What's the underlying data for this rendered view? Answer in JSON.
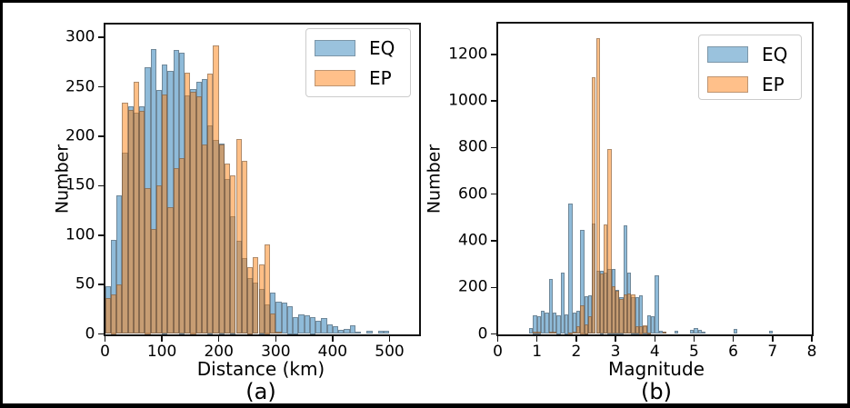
{
  "figure": {
    "background": "#ffffff",
    "border_color": "#000000"
  },
  "colors": {
    "eq_fill": "rgba(31,119,180,0.5)",
    "ep_fill": "rgba(255,127,14,0.5)",
    "eq_solid": "#9ac2dd",
    "ep_solid": "#ffc08a",
    "bar_edge": "rgba(75,75,75,0.45)",
    "spine": "#111111"
  },
  "chart_data": [
    {
      "type": "bar",
      "subtype": "histogram-overlaid",
      "panel": "(a)",
      "xlabel": "Distance (km)",
      "ylabel": "Number",
      "xlim": [
        0,
        552
      ],
      "ylim": [
        0,
        313
      ],
      "xticks": [
        0,
        100,
        200,
        300,
        400,
        500
      ],
      "yticks": [
        0,
        50,
        100,
        150,
        200,
        250,
        300
      ],
      "grid": false,
      "bin_width": 10,
      "legend_position": "upper-right",
      "series_names": [
        "EQ",
        "EP"
      ],
      "bins_note": "each bin is [bin_start, EQ_count, EP_count]",
      "bins": [
        [
          0,
          48,
          36
        ],
        [
          10,
          95,
          40
        ],
        [
          20,
          140,
          50
        ],
        [
          30,
          183,
          234
        ],
        [
          40,
          230,
          227
        ],
        [
          50,
          224,
          255
        ],
        [
          60,
          230,
          226
        ],
        [
          70,
          270,
          148
        ],
        [
          80,
          288,
          106
        ],
        [
          90,
          247,
          150
        ],
        [
          100,
          273,
          242
        ],
        [
          110,
          266,
          128
        ],
        [
          120,
          287,
          168
        ],
        [
          130,
          285,
          178
        ],
        [
          140,
          241,
          264
        ],
        [
          150,
          248,
          245
        ],
        [
          160,
          255,
          240
        ],
        [
          170,
          258,
          192
        ],
        [
          180,
          211,
          263
        ],
        [
          190,
          196,
          292
        ],
        [
          200,
          193,
          192
        ],
        [
          210,
          157,
          172
        ],
        [
          220,
          119,
          160
        ],
        [
          230,
          94,
          197
        ],
        [
          240,
          77,
          175
        ],
        [
          250,
          57,
          68
        ],
        [
          260,
          52,
          78
        ],
        [
          270,
          46,
          70
        ],
        [
          280,
          30,
          91
        ],
        [
          290,
          42,
          21
        ],
        [
          300,
          33,
          2
        ],
        [
          310,
          32,
          0
        ],
        [
          320,
          28,
          0
        ],
        [
          330,
          17,
          0
        ],
        [
          340,
          20,
          0
        ],
        [
          350,
          19,
          0
        ],
        [
          360,
          17,
          0
        ],
        [
          370,
          13,
          0
        ],
        [
          380,
          16,
          0
        ],
        [
          390,
          10,
          0
        ],
        [
          400,
          8,
          0
        ],
        [
          410,
          4,
          0
        ],
        [
          420,
          5,
          0
        ],
        [
          430,
          9,
          0
        ],
        [
          440,
          2,
          0
        ],
        [
          450,
          0,
          0
        ],
        [
          460,
          3,
          0
        ],
        [
          470,
          0,
          0
        ],
        [
          480,
          3,
          0
        ],
        [
          490,
          3,
          0
        ]
      ]
    },
    {
      "type": "bar",
      "subtype": "histogram-overlaid",
      "panel": "(b)",
      "xlabel": "Magnitude",
      "ylabel": "Number",
      "xlim": [
        0,
        8
      ],
      "ylim": [
        0,
        1334
      ],
      "xticks": [
        0,
        1,
        2,
        3,
        4,
        5,
        6,
        7,
        8
      ],
      "yticks": [
        0,
        200,
        400,
        600,
        800,
        1000,
        1200
      ],
      "grid": false,
      "bin_width": 0.1,
      "legend_position": "upper-right",
      "series_names": [
        "EQ",
        "EP"
      ],
      "bins_note": "each bin is [bin_start, EQ_count, EP_count]",
      "bins": [
        [
          0.8,
          25,
          0
        ],
        [
          0.9,
          80,
          8
        ],
        [
          1.0,
          78,
          8
        ],
        [
          1.1,
          100,
          0
        ],
        [
          1.2,
          91,
          0
        ],
        [
          1.3,
          237,
          8
        ],
        [
          1.4,
          91,
          10
        ],
        [
          1.5,
          82,
          0
        ],
        [
          1.6,
          263,
          0
        ],
        [
          1.7,
          84,
          0
        ],
        [
          1.8,
          558,
          5
        ],
        [
          1.9,
          91,
          8
        ],
        [
          2.0,
          100,
          32
        ],
        [
          2.1,
          445,
          123
        ],
        [
          2.2,
          162,
          41
        ],
        [
          2.3,
          166,
          75
        ],
        [
          2.4,
          475,
          1103
        ],
        [
          2.5,
          270,
          1268
        ],
        [
          2.6,
          273,
          260
        ],
        [
          2.7,
          265,
          471
        ],
        [
          2.8,
          281,
          795
        ],
        [
          2.9,
          281,
          205
        ],
        [
          3.0,
          191,
          186
        ],
        [
          3.1,
          160,
          149
        ],
        [
          3.2,
          465,
          171
        ],
        [
          3.3,
          265,
          175
        ],
        [
          3.4,
          160,
          169
        ],
        [
          3.5,
          160,
          32
        ],
        [
          3.6,
          165,
          35
        ],
        [
          3.7,
          35,
          36
        ],
        [
          3.8,
          80,
          5
        ],
        [
          3.9,
          75,
          0
        ],
        [
          4.0,
          250,
          0
        ],
        [
          4.1,
          15,
          0
        ],
        [
          4.2,
          10,
          10
        ],
        [
          4.5,
          15,
          0
        ],
        [
          4.9,
          18,
          0
        ],
        [
          5.0,
          25,
          0
        ],
        [
          5.1,
          18,
          0
        ],
        [
          5.2,
          8,
          0
        ],
        [
          6.0,
          20,
          0
        ],
        [
          6.9,
          14,
          0
        ]
      ]
    }
  ],
  "legend": {
    "entries": [
      {
        "label": "EQ",
        "color_key": "eq_solid"
      },
      {
        "label": "EP",
        "color_key": "ep_solid"
      }
    ]
  }
}
